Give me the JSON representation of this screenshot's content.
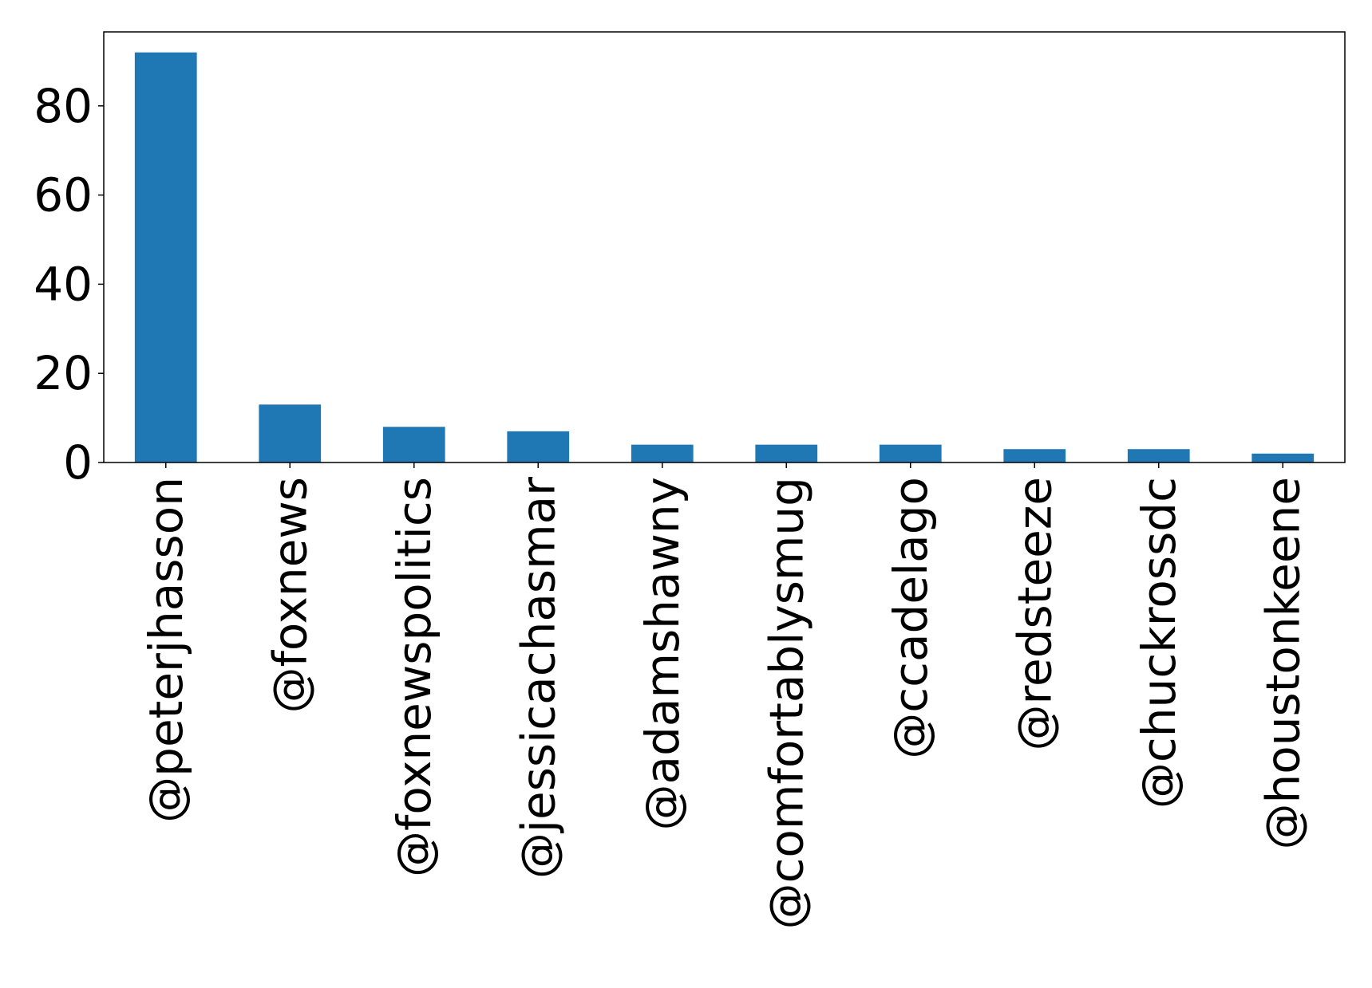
{
  "chart_data": {
    "type": "bar",
    "categories": [
      "@peterjhasson",
      "@foxnews",
      "@foxnewspolitics",
      "@jessicachasmar",
      "@adamshawny",
      "@comfortablysmug",
      "@ccadelago",
      "@redsteeze",
      "@chuckrossdc",
      "@houstonkeene"
    ],
    "values": [
      92,
      13,
      8,
      7,
      4,
      4,
      4,
      3,
      3,
      2
    ],
    "title": "",
    "xlabel": "",
    "ylabel": "",
    "ylim": [
      0,
      96.6
    ],
    "yticks": [
      0,
      20,
      40,
      60,
      80
    ],
    "bar_color": "#1f77b4",
    "grid": false,
    "legend": "none"
  }
}
